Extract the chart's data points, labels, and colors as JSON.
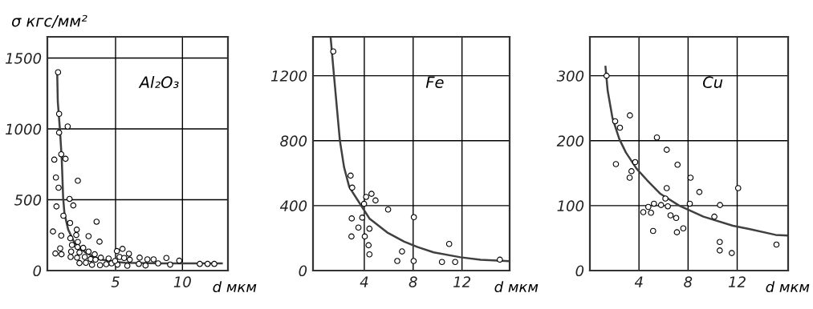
{
  "chart_data": [
    {
      "type": "scatter",
      "ylabel": "σ кгс/мм²",
      "xlabel": "d мкм",
      "annotations": [
        "Al₂O₃"
      ],
      "xlim": [
        -0.1,
        13.4
      ],
      "ylim": [
        0,
        1650
      ],
      "xticks": [
        5,
        10
      ],
      "yticks": [
        0,
        500,
        1000,
        1500
      ],
      "grid": true,
      "series": [
        {
          "marker": "circle",
          "color": "#000000",
          "x": [
            0.7,
            0.78,
            1.42,
            0.78,
            0.94,
            1.26,
            0.42,
            0.54,
            0.74,
            2.18,
            1.56,
            1.84,
            0.58,
            1.1,
            1.6,
            3.58,
            0.32,
            2.1,
            0.94,
            2.06,
            2.98,
            1.62,
            3.8,
            2.18,
            1.74,
            0.86,
            2.16,
            2.58,
            0.5,
            0.96,
            1.68,
            2.3,
            2.98,
            3.44,
            5.1,
            5.52,
            6.0,
            1.64,
            2.12,
            2.7,
            3.14,
            3.9,
            4.48,
            5.3,
            5.64,
            6.06,
            6.8,
            7.38,
            7.84,
            8.8,
            2.3,
            2.78,
            3.24,
            3.84,
            4.3,
            4.7,
            5.14,
            5.88,
            6.74,
            7.24,
            8.18,
            9.08,
            9.76,
            11.3,
            11.88,
            12.38,
            3.5,
            4.96
          ],
          "values": [
            1400,
            1106,
            1017,
            974,
            821,
            789,
            783,
            657,
            585,
            634,
            506,
            460,
            453,
            387,
            336,
            345,
            276,
            289,
            247,
            251,
            243,
            228,
            204,
            202,
            181,
            157,
            166,
            160,
            121,
            115,
            134,
            128,
            134,
            115,
            138,
            153,
            119,
            96,
            91,
            96,
            81,
            91,
            85,
            96,
            89,
            77,
            91,
            79,
            79,
            89,
            53,
            55,
            40,
            38,
            45,
            51,
            42,
            34,
            47,
            36,
            51,
            42,
            70,
            47,
            47,
            47,
            77,
            68
          ]
        },
        {
          "type": "line",
          "color": "#404040",
          "x": [
            0.64,
            0.68,
            0.86,
            0.98,
            1.08,
            1.18,
            1.46,
            1.94,
            2.74,
            3.74,
            4.94,
            5.74,
            8.34,
            12.94
          ],
          "values": [
            1379,
            1194,
            968,
            779,
            515,
            402,
            289,
            194,
            128,
            81,
            62,
            55,
            51,
            51
          ]
        }
      ]
    },
    {
      "type": "scatter",
      "xlabel": "d мкм",
      "annotations": [
        "Fe"
      ],
      "xlim": [
        -0.2,
        15.9
      ],
      "ylim": [
        0,
        1440
      ],
      "xticks": [
        4,
        8,
        12
      ],
      "yticks": [
        0,
        400,
        800,
        1200
      ],
      "grid": true,
      "series": [
        {
          "marker": "circle",
          "color": "#000000",
          "x": [
            1.46,
            2.88,
            3.01,
            3.98,
            4.15,
            4.59,
            4.92,
            5.95,
            2.97,
            3.83,
            8.06,
            3.52,
            4.42,
            2.95,
            4.04,
            4.35,
            4.42,
            7.09,
            6.7,
            8.04,
            10.95,
            10.36,
            11.44,
            15.1
          ],
          "values": [
            1350,
            585,
            511,
            411,
            454,
            473,
            432,
            376,
            321,
            326,
            329,
            265,
            258,
            210,
            210,
            156,
            100,
            118,
            59,
            59,
            164,
            53,
            53,
            67
          ]
        },
        {
          "type": "line",
          "color": "#404040",
          "x": [
            1.24,
            1.52,
            1.79,
            2.0,
            2.34,
            2.77,
            3.54,
            4.42,
            5.87,
            7.27,
            8.37,
            9.68,
            11.88,
            13.53,
            15.9
          ],
          "values": [
            1439,
            1200,
            975,
            802,
            638,
            515,
            424,
            321,
            235,
            178,
            145,
            112,
            82,
            67,
            58
          ]
        }
      ]
    },
    {
      "type": "scatter",
      "xlabel": "d мкм",
      "annotations": [
        "Cu"
      ],
      "xlim": [
        0,
        16.15
      ],
      "ylim": [
        0,
        360
      ],
      "xticks": [
        4,
        8,
        12
      ],
      "yticks": [
        0,
        100,
        200,
        300
      ],
      "grid": true,
      "series": [
        {
          "marker": "circle",
          "color": "#000000",
          "x": [
            1.36,
            2.06,
            2.45,
            3.26,
            2.12,
            3.69,
            3.39,
            3.24,
            5.46,
            6.26,
            7.14,
            8.2,
            8.92,
            6.26,
            12.08,
            6.15,
            5.22,
            5.8,
            6.35,
            4.76,
            4.35,
            4.98,
            8.14,
            10.6,
            10.14,
            6.57,
            7.03,
            7.61,
            7.09,
            5.15,
            10.58,
            10.58,
            11.56,
            15.2
          ],
          "values": [
            300,
            230,
            220,
            239,
            164,
            167,
            153,
            143,
            205,
            186,
            163,
            143,
            121,
            127,
            127,
            111,
            103,
            101,
            99,
            98,
            90,
            89,
            103,
            101,
            83,
            85,
            81,
            65,
            59,
            61,
            44,
            31,
            27,
            40
          ]
        },
        {
          "type": "line",
          "color": "#404040",
          "x": [
            1.27,
            1.45,
            1.84,
            2.39,
            2.93,
            3.8,
            4.67,
            5.76,
            7.28,
            9.25,
            11.65,
            12.96,
            15.13,
            16.1
          ],
          "values": [
            314,
            277,
            235,
            203,
            182,
            157,
            139,
            118,
            100,
            83,
            69,
            64,
            55,
            54
          ]
        }
      ]
    }
  ]
}
